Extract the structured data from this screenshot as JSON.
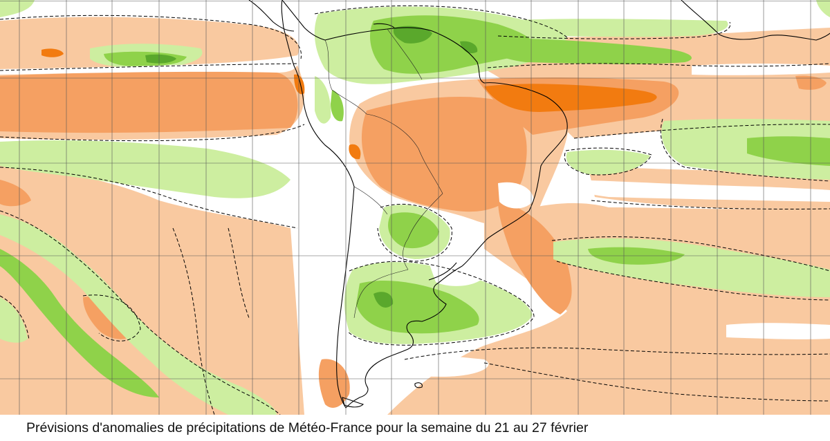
{
  "caption": "Prévisions d'anomalies de précipitations de Météo-France pour la semaine du 21 au 27 février",
  "map": {
    "variable": "precipitation anomaly",
    "region": "South America and adjacent Pacific / Atlantic oceans",
    "colors": {
      "dry_light": "#f9c9a0",
      "dry_medium": "#f5a062",
      "dry_strong": "#f27b10",
      "wet_light": "#cdeea0",
      "wet_medium": "#8fd24a",
      "wet_strong": "#5aa82c",
      "neutral": "#ffffff",
      "grid": "#555555",
      "coastline": "#000000",
      "zero_contour": "#000000"
    },
    "zero_contour_style": "dashed",
    "gridlines": true
  }
}
